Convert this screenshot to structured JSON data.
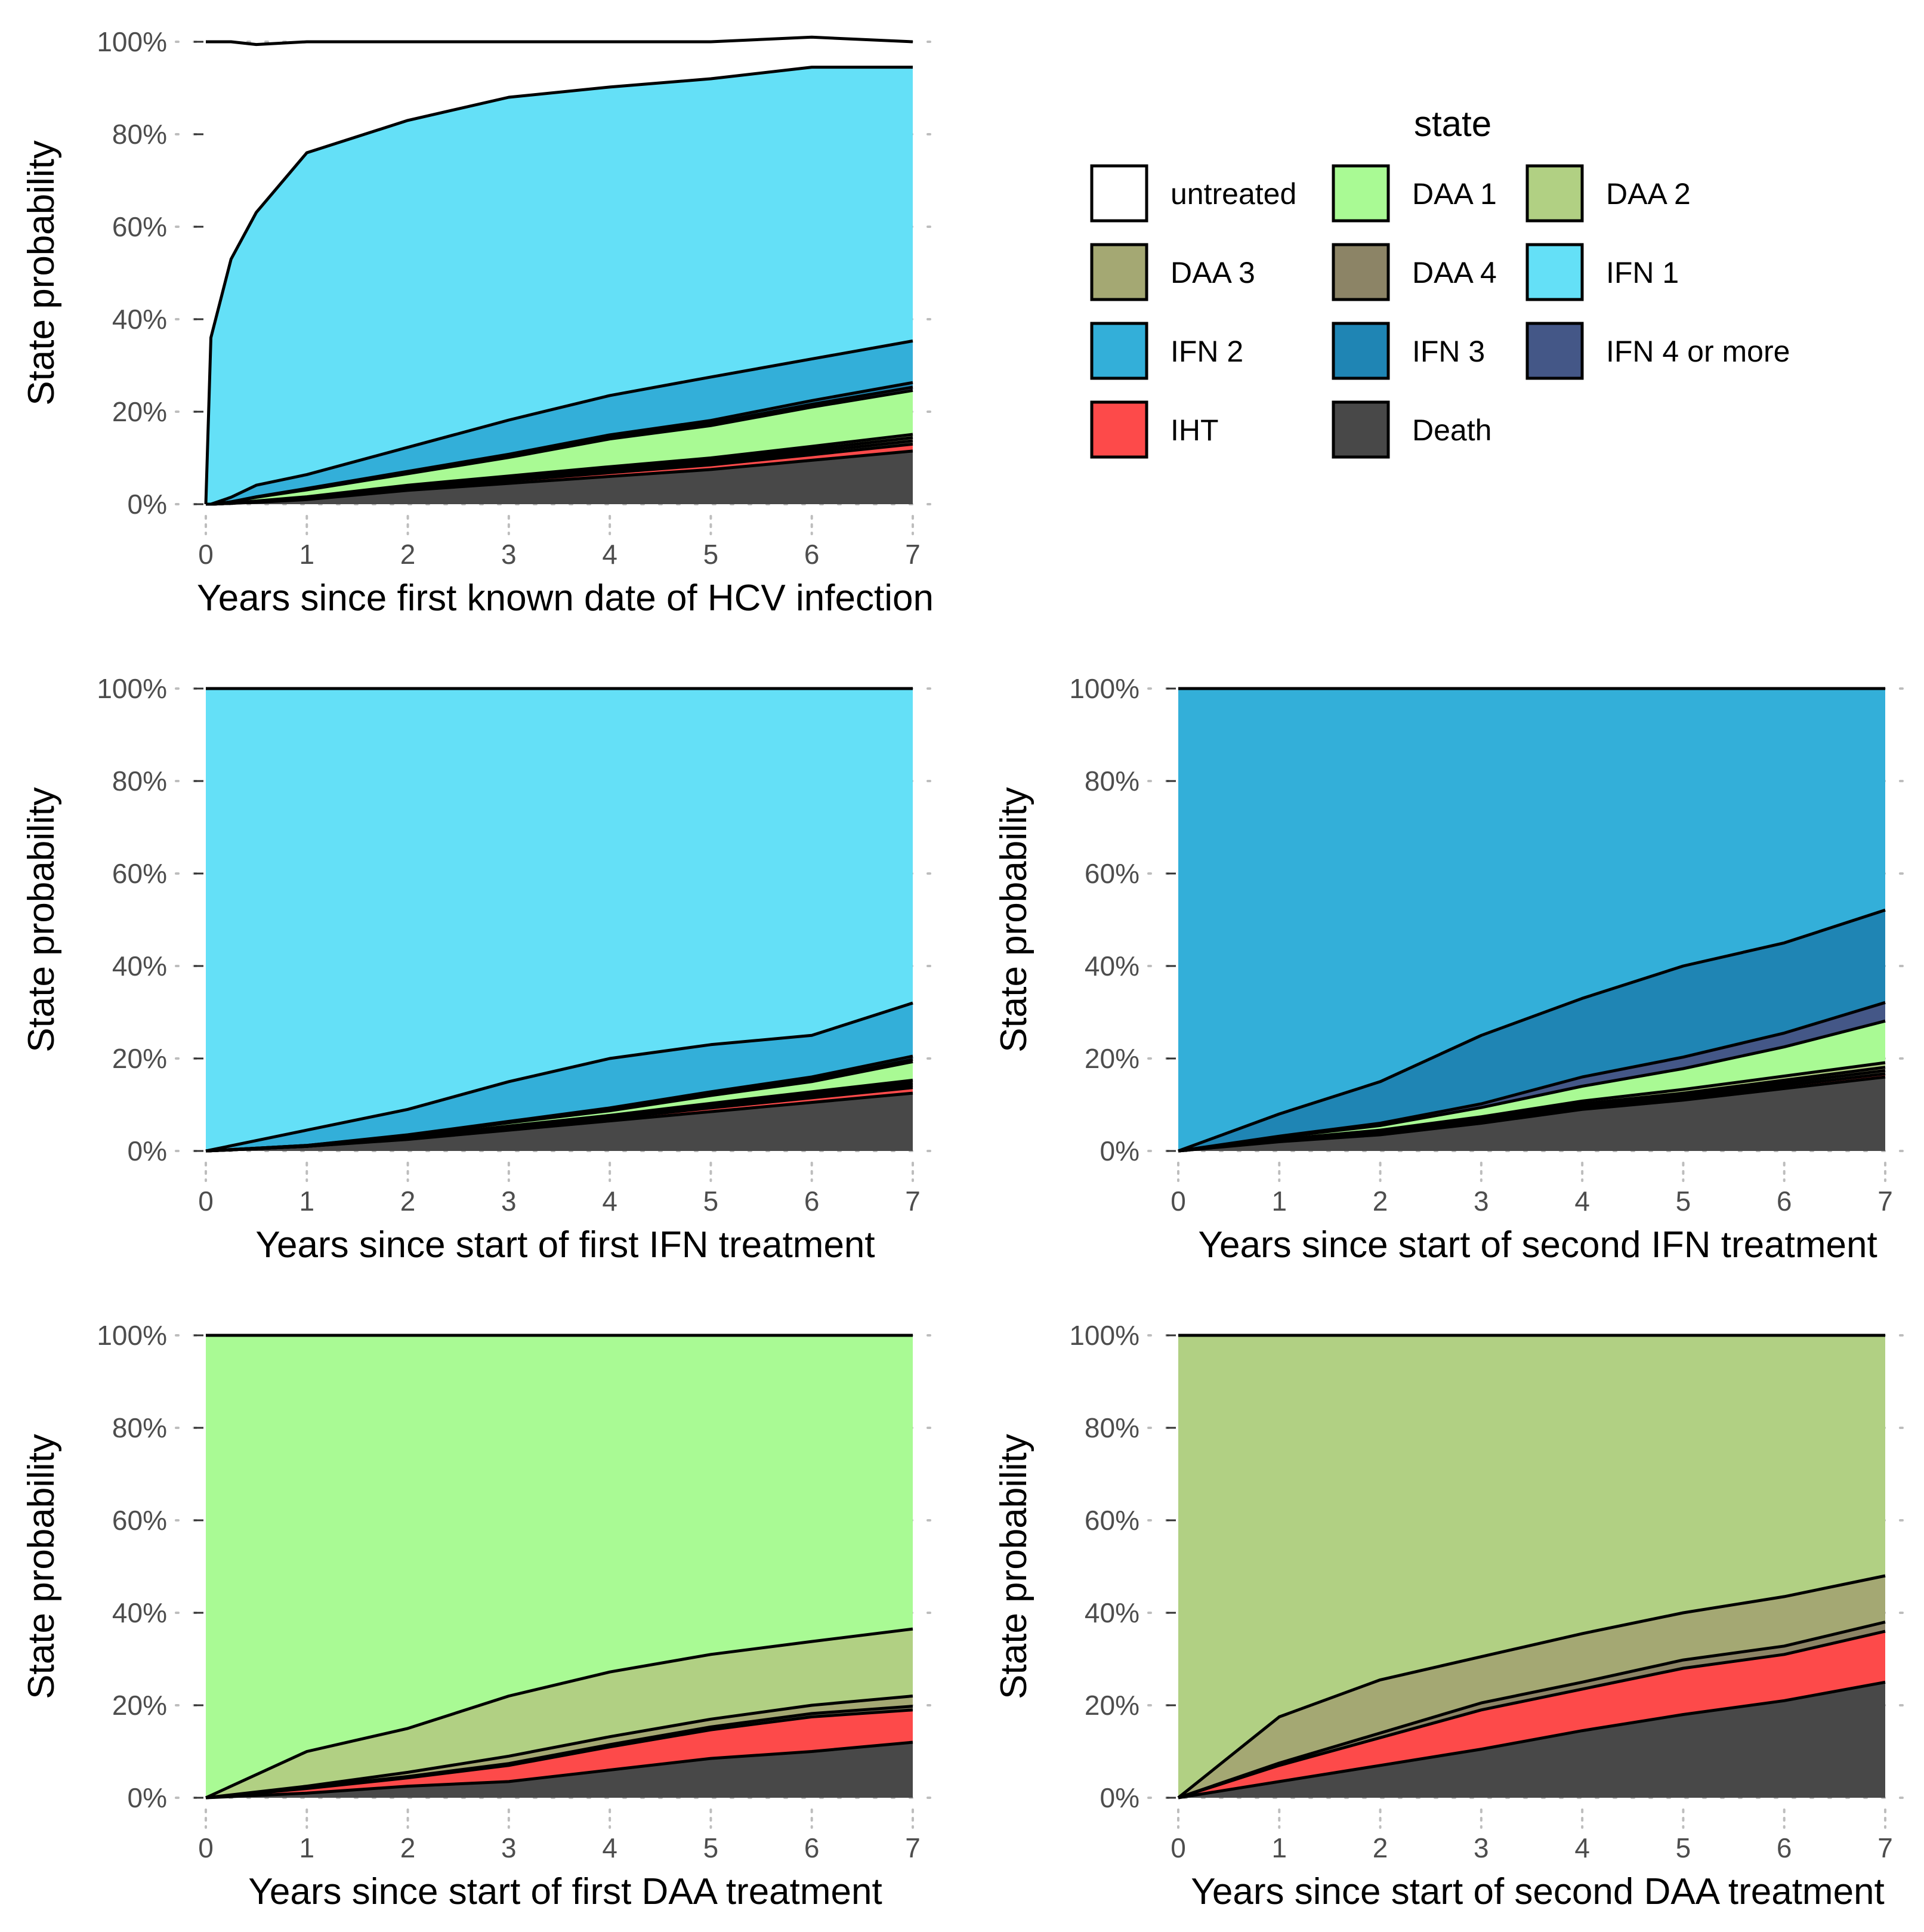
{
  "state_colors": {
    "untreated": "#ffffff",
    "DAA 1": "#a9fa94",
    "DAA 2": "#b1d083",
    "DAA 3": "#a4a873",
    "DAA 4": "#8c8466",
    "IFN 1": "#64e0f7",
    "IFN 2": "#33afd9",
    "IFN 3": "#1f85b4",
    "IFN 4 or more": "#445787",
    "IHT": "#fd4a4a",
    "Death": "#484848"
  },
  "legend": {
    "title": "state",
    "position": "top-right",
    "items": [
      "untreated",
      "DAA 1",
      "DAA 2",
      "DAA 3",
      "DAA 4",
      "IFN 1",
      "IFN 2",
      "IFN 3",
      "IFN 4 or more",
      "IHT",
      "Death"
    ]
  },
  "chart_data": [
    {
      "type": "area",
      "stacked": true,
      "xlabel": "Years since first known date of HCV infection",
      "ylabel": "State probability",
      "xlim": [
        0,
        7
      ],
      "ylim": [
        0,
        1
      ],
      "x_ticks": [
        "0",
        "1",
        "2",
        "3",
        "4",
        "5",
        "6",
        "7"
      ],
      "y_ticks": [
        "0%",
        "20%",
        "40%",
        "60%",
        "80%",
        "100%"
      ],
      "grid": "horizontal dotted",
      "x": [
        0,
        0.05,
        0.25,
        0.5,
        1,
        2,
        3,
        4,
        5,
        6,
        7
      ],
      "series": [
        {
          "name": "Death",
          "values": [
            0,
            0,
            0.002,
            0.004,
            0.01,
            0.03,
            0.045,
            0.06,
            0.075,
            0.095,
            0.115
          ]
        },
        {
          "name": "IHT",
          "values": [
            0,
            0,
            0,
            0.001,
            0.002,
            0.004,
            0.006,
            0.008,
            0.01,
            0.012,
            0.015
          ]
        },
        {
          "name": "DAA 4",
          "values": [
            0,
            0,
            0,
            0,
            0.001,
            0.002,
            0.003,
            0.004,
            0.005,
            0.006,
            0.007
          ]
        },
        {
          "name": "DAA 3",
          "values": [
            0,
            0,
            0,
            0.001,
            0.001,
            0.002,
            0.003,
            0.004,
            0.005,
            0.006,
            0.007
          ]
        },
        {
          "name": "DAA 2",
          "values": [
            0,
            0,
            0,
            0.001,
            0.002,
            0.003,
            0.004,
            0.005,
            0.005,
            0.006,
            0.007
          ]
        },
        {
          "name": "DAA 1",
          "values": [
            0,
            0,
            0.003,
            0.008,
            0.015,
            0.025,
            0.04,
            0.06,
            0.07,
            0.085,
            0.095
          ]
        },
        {
          "name": "IFN 4 or more",
          "values": [
            0,
            0,
            0,
            0,
            0.001,
            0.002,
            0.003,
            0.004,
            0.005,
            0.006,
            0.007
          ]
        },
        {
          "name": "IFN 3",
          "values": [
            0,
            0,
            0,
            0.001,
            0.002,
            0.003,
            0.004,
            0.005,
            0.006,
            0.008,
            0.01
          ]
        },
        {
          "name": "IFN 2",
          "values": [
            0,
            0,
            0.01,
            0.025,
            0.03,
            0.052,
            0.074,
            0.085,
            0.094,
            0.09,
            0.09
          ]
        },
        {
          "name": "IFN 1",
          "values": [
            0,
            0.36,
            0.515,
            0.59,
            0.696,
            0.707,
            0.698,
            0.667,
            0.645,
            0.631,
            0.592
          ]
        },
        {
          "name": "untreated",
          "values": [
            1,
            0.64,
            0.47,
            0.363,
            0.24,
            0.17,
            0.12,
            0.098,
            0.08,
            0.065,
            0.055
          ]
        }
      ]
    },
    {
      "type": "area",
      "stacked": true,
      "xlabel": "Years since start of first IFN treatment",
      "ylabel": "State probability",
      "xlim": [
        0,
        7
      ],
      "ylim": [
        0,
        1
      ],
      "x_ticks": [
        "0",
        "1",
        "2",
        "3",
        "4",
        "5",
        "6",
        "7"
      ],
      "y_ticks": [
        "0%",
        "20%",
        "40%",
        "60%",
        "80%",
        "100%"
      ],
      "grid": "horizontal dotted",
      "x": [
        0,
        1,
        2,
        3,
        4,
        5,
        6,
        7
      ],
      "series": [
        {
          "name": "Death",
          "values": [
            0,
            0.01,
            0.025,
            0.045,
            0.065,
            0.085,
            0.105,
            0.125
          ]
        },
        {
          "name": "IHT",
          "values": [
            0,
            0,
            0.001,
            0.003,
            0.005,
            0.008,
            0.01,
            0.012
          ]
        },
        {
          "name": "DAA 4",
          "values": [
            0,
            0,
            0.001,
            0.002,
            0.002,
            0.003,
            0.004,
            0.005
          ]
        },
        {
          "name": "DAA 3",
          "values": [
            0,
            0,
            0.001,
            0.002,
            0.002,
            0.003,
            0.004,
            0.005
          ]
        },
        {
          "name": "DAA 2",
          "values": [
            0,
            0,
            0.001,
            0.002,
            0.003,
            0.004,
            0.005,
            0.006
          ]
        },
        {
          "name": "DAA 1",
          "values": [
            0,
            0.002,
            0.004,
            0.007,
            0.01,
            0.017,
            0.022,
            0.04
          ]
        },
        {
          "name": "IFN 4 or more",
          "values": [
            0,
            0,
            0.001,
            0.001,
            0.002,
            0.003,
            0.004,
            0.005
          ]
        },
        {
          "name": "IFN 3",
          "values": [
            0,
            0,
            0.001,
            0.002,
            0.004,
            0.005,
            0.006,
            0.007
          ]
        },
        {
          "name": "IFN 2",
          "values": [
            0,
            0.033,
            0.055,
            0.086,
            0.107,
            0.102,
            0.09,
            0.115
          ]
        },
        {
          "name": "IFN 1",
          "values": [
            1,
            0.955,
            0.91,
            0.85,
            0.8,
            0.77,
            0.75,
            0.68
          ]
        },
        {
          "name": "untreated",
          "values": [
            0,
            0,
            0,
            0,
            0,
            0,
            0,
            0
          ]
        }
      ]
    },
    {
      "type": "area",
      "stacked": true,
      "xlabel": "Years since start of second IFN treatment",
      "ylabel": "State probability",
      "xlim": [
        0,
        7
      ],
      "ylim": [
        0,
        1
      ],
      "x_ticks": [
        "0",
        "1",
        "2",
        "3",
        "4",
        "5",
        "6",
        "7"
      ],
      "y_ticks": [
        "0%",
        "20%",
        "40%",
        "60%",
        "80%",
        "100%"
      ],
      "grid": "horizontal dotted",
      "x": [
        0,
        1,
        2,
        3,
        4,
        5,
        6,
        7
      ],
      "series": [
        {
          "name": "Death",
          "values": [
            0,
            0.02,
            0.035,
            0.06,
            0.09,
            0.11,
            0.135,
            0.16
          ]
        },
        {
          "name": "IHT",
          "values": [
            0,
            0.001,
            0.002,
            0.003,
            0.004,
            0.005,
            0.006,
            0.007
          ]
        },
        {
          "name": "DAA 4",
          "values": [
            0,
            0.001,
            0.002,
            0.003,
            0.004,
            0.005,
            0.006,
            0.007
          ]
        },
        {
          "name": "DAA 3",
          "values": [
            0,
            0.001,
            0.002,
            0.003,
            0.004,
            0.005,
            0.006,
            0.007
          ]
        },
        {
          "name": "DAA 2",
          "values": [
            0,
            0.002,
            0.004,
            0.005,
            0.006,
            0.008,
            0.009,
            0.01
          ]
        },
        {
          "name": "DAA 1",
          "values": [
            0,
            0.005,
            0.01,
            0.02,
            0.032,
            0.045,
            0.063,
            0.09
          ]
        },
        {
          "name": "IFN 4 or more",
          "values": [
            0,
            0.002,
            0.005,
            0.008,
            0.02,
            0.025,
            0.03,
            0.04
          ]
        },
        {
          "name": "IFN 3",
          "values": [
            0,
            0.048,
            0.09,
            0.148,
            0.17,
            0.197,
            0.195,
            0.2
          ]
        },
        {
          "name": "IFN 2",
          "values": [
            1,
            0.92,
            0.85,
            0.75,
            0.67,
            0.6,
            0.55,
            0.479
          ]
        },
        {
          "name": "IFN 1",
          "values": [
            0,
            0,
            0,
            0,
            0,
            0,
            0,
            0
          ]
        },
        {
          "name": "untreated",
          "values": [
            0,
            0,
            0,
            0,
            0,
            0,
            0,
            0
          ]
        }
      ]
    },
    {
      "type": "area",
      "stacked": true,
      "xlabel": "Years since start of first DAA treatment",
      "ylabel": "State probability",
      "xlim": [
        0,
        7
      ],
      "ylim": [
        0,
        1
      ],
      "x_ticks": [
        "0",
        "1",
        "2",
        "3",
        "4",
        "5",
        "6",
        "7"
      ],
      "y_ticks": [
        "0%",
        "20%",
        "40%",
        "60%",
        "80%",
        "100%"
      ],
      "grid": "horizontal dotted",
      "x": [
        0,
        1,
        2,
        3,
        4,
        5,
        6,
        7
      ],
      "series": [
        {
          "name": "Death",
          "values": [
            0,
            0.01,
            0.025,
            0.035,
            0.06,
            0.085,
            0.1,
            0.12
          ]
        },
        {
          "name": "IHT",
          "values": [
            0,
            0.01,
            0.018,
            0.035,
            0.05,
            0.062,
            0.075,
            0.07
          ]
        },
        {
          "name": "DAA 4",
          "values": [
            0,
            0.002,
            0.003,
            0.004,
            0.005,
            0.006,
            0.007,
            0.008
          ]
        },
        {
          "name": "DAA 3",
          "values": [
            0,
            0.003,
            0.009,
            0.016,
            0.017,
            0.017,
            0.018,
            0.022
          ]
        },
        {
          "name": "DAA 2",
          "values": [
            0,
            0.075,
            0.095,
            0.13,
            0.14,
            0.14,
            0.138,
            0.145
          ]
        },
        {
          "name": "DAA 1",
          "values": [
            1,
            0.9,
            0.85,
            0.78,
            0.728,
            0.69,
            0.662,
            0.635
          ]
        },
        {
          "name": "IFN 4 or more",
          "values": [
            0,
            0,
            0,
            0,
            0,
            0,
            0,
            0
          ]
        },
        {
          "name": "IFN 3",
          "values": [
            0,
            0,
            0,
            0,
            0,
            0,
            0,
            0
          ]
        },
        {
          "name": "IFN 2",
          "values": [
            0,
            0,
            0,
            0,
            0,
            0,
            0,
            0
          ]
        },
        {
          "name": "IFN 1",
          "values": [
            0,
            0,
            0,
            0,
            0,
            0,
            0,
            0
          ]
        },
        {
          "name": "untreated",
          "values": [
            0,
            0,
            0,
            0,
            0,
            0,
            0,
            0
          ]
        }
      ]
    },
    {
      "type": "area",
      "stacked": true,
      "xlabel": "Years since start of second DAA treatment",
      "ylabel": "State probability",
      "xlim": [
        0,
        7
      ],
      "ylim": [
        0,
        1
      ],
      "x_ticks": [
        "0",
        "1",
        "2",
        "3",
        "4",
        "5",
        "6",
        "7"
      ],
      "y_ticks": [
        "0%",
        "20%",
        "40%",
        "60%",
        "80%",
        "100%"
      ],
      "grid": "horizontal dotted",
      "x": [
        0,
        1,
        2,
        3,
        4,
        5,
        6,
        7
      ],
      "series": [
        {
          "name": "Death",
          "values": [
            0,
            0.035,
            0.07,
            0.105,
            0.145,
            0.18,
            0.21,
            0.25
          ]
        },
        {
          "name": "IHT",
          "values": [
            0,
            0.035,
            0.06,
            0.085,
            0.09,
            0.1,
            0.1,
            0.11
          ]
        },
        {
          "name": "DAA 4",
          "values": [
            0,
            0.005,
            0.01,
            0.015,
            0.015,
            0.018,
            0.018,
            0.02
          ]
        },
        {
          "name": "DAA 3",
          "values": [
            0,
            0.1,
            0.115,
            0.1,
            0.105,
            0.102,
            0.107,
            0.1
          ]
        },
        {
          "name": "DAA 2",
          "values": [
            1,
            0.825,
            0.745,
            0.695,
            0.645,
            0.6,
            0.565,
            0.52
          ]
        },
        {
          "name": "DAA 1",
          "values": [
            0,
            0,
            0,
            0,
            0,
            0,
            0,
            0
          ]
        },
        {
          "name": "IFN 4 or more",
          "values": [
            0,
            0,
            0,
            0,
            0,
            0,
            0,
            0
          ]
        },
        {
          "name": "IFN 3",
          "values": [
            0,
            0,
            0,
            0,
            0,
            0,
            0,
            0
          ]
        },
        {
          "name": "IFN 2",
          "values": [
            0,
            0,
            0,
            0,
            0,
            0,
            0,
            0
          ]
        },
        {
          "name": "IFN 1",
          "values": [
            0,
            0,
            0,
            0,
            0,
            0,
            0,
            0
          ]
        },
        {
          "name": "untreated",
          "values": [
            0,
            0,
            0,
            0,
            0,
            0,
            0,
            0
          ]
        }
      ]
    }
  ]
}
